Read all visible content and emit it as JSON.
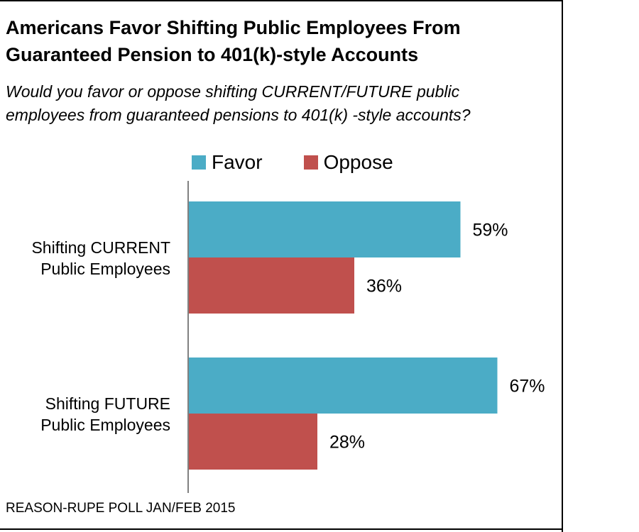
{
  "title_lines": [
    "Americans Favor Shifting Public Employees From",
    "Guaranteed Pension to 401(k)-style Accounts"
  ],
  "subtitle_lines": [
    "Would you favor or oppose shifting CURRENT/FUTURE public",
    "employees from guaranteed pensions to 401(k) -style accounts?"
  ],
  "source": "REASON-RUPE POLL JAN/FEB 2015",
  "colors": {
    "favor": "#4BACC6",
    "oppose": "#C0504D",
    "axis": "#808080"
  },
  "chart_data": {
    "type": "bar",
    "orientation": "horizontal",
    "title": "Americans Favor Shifting Public Employees From Guaranteed Pension to 401(k)-style Accounts",
    "subtitle": "Would you favor or oppose shifting CURRENT/FUTURE public employees from guaranteed pensions to 401(k) -style accounts?",
    "legend_position": "top",
    "grid": false,
    "unit": "%",
    "xlim": [
      0,
      100
    ],
    "categories": [
      [
        "Shifting CURRENT",
        "Public Employees"
      ],
      [
        "Shifting FUTURE",
        "Public Employees"
      ]
    ],
    "series": [
      {
        "name": "Favor",
        "values": [
          59,
          67
        ],
        "labels": [
          "59%",
          "67%"
        ]
      },
      {
        "name": "Oppose",
        "values": [
          36,
          28
        ],
        "labels": [
          "36%",
          "28%"
        ]
      }
    ]
  }
}
